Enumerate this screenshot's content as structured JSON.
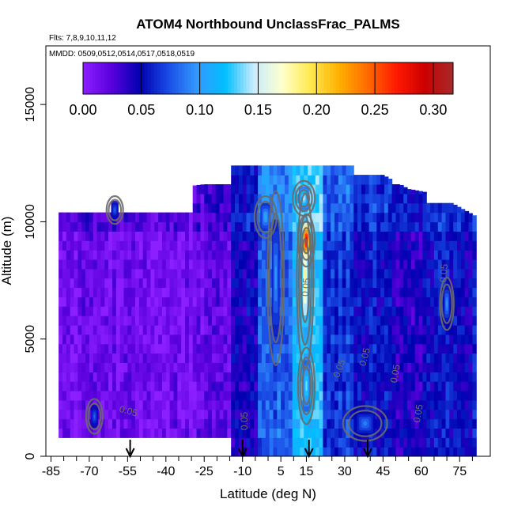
{
  "chart_data": {
    "type": "heatmap",
    "title": "ATOM4 Northbound UnclassFrac_PALMS",
    "subtitle_flights": "Flts: 7,8,9,10,11,12",
    "subtitle_dates": "MMDD: 0509,0512,0514,0517,0518,0519",
    "xlabel": "Latitude (deg N)",
    "ylabel": "Altitude (m)",
    "xlim": [
      -87,
      87
    ],
    "ylim": [
      0,
      17500
    ],
    "x_ticks": [
      -85,
      -70,
      -55,
      -40,
      -25,
      -10,
      5,
      15,
      30,
      45,
      60,
      75
    ],
    "x_minor_ticks": [
      -80,
      -75,
      -65,
      -60,
      -50,
      -45,
      -35,
      -30,
      -20,
      -15,
      -5,
      0,
      10,
      20,
      25,
      35,
      40,
      50,
      55,
      65,
      70,
      80
    ],
    "y_ticks": [
      0,
      5000,
      10000,
      15000
    ],
    "colorbar": {
      "min": 0.0,
      "max": 0.317,
      "ticks": [
        "0.00",
        "0.05",
        "0.10",
        "0.15",
        "0.20",
        "0.25",
        "0.30"
      ],
      "tick_values": [
        0.0,
        0.05,
        0.1,
        0.15,
        0.2,
        0.25,
        0.3
      ],
      "colors": [
        "#8c1fff",
        "#5a00dd",
        "#0000b0",
        "#1a4ce6",
        "#3399ff",
        "#00bfff",
        "#c8ecff",
        "#ffffcc",
        "#ffe94d",
        "#ffb000",
        "#ff6a00",
        "#ff1a00",
        "#cc0000",
        "#a52a2a"
      ]
    },
    "arrows_latitude": [
      -54,
      -10,
      16,
      39
    ],
    "contour_labels": [
      {
        "text": "0.05",
        "lat": -55,
        "alt": 1800,
        "rotate": 15
      },
      {
        "text": "0.05",
        "lat": -8,
        "alt": 1500,
        "rotate": -90
      },
      {
        "text": "0.05",
        "lat": 16,
        "alt": 7200,
        "rotate": -85
      },
      {
        "text": "0.05",
        "lat": 29,
        "alt": 3700,
        "rotate": -70
      },
      {
        "text": "0.05",
        "lat": 39,
        "alt": 4200,
        "rotate": -75
      },
      {
        "text": "0.05",
        "lat": 51,
        "alt": 3500,
        "rotate": -80
      },
      {
        "text": "0.05",
        "lat": 60,
        "alt": 1800,
        "rotate": -80
      },
      {
        "text": "0.05",
        "lat": 70,
        "alt": 7800,
        "rotate": -85
      }
    ],
    "domain": {
      "lat_range": [
        -85,
        85
      ],
      "alt_by_lat": [
        [
          -85,
          10400
        ],
        [
          -70,
          10500
        ],
        [
          -60,
          11400
        ],
        [
          -40,
          11400
        ],
        [
          -25,
          11600
        ],
        [
          -20,
          12400
        ],
        [
          25,
          12400
        ],
        [
          30,
          13000
        ],
        [
          33,
          12400
        ],
        [
          45,
          12000
        ],
        [
          55,
          11400
        ],
        [
          65,
          11200
        ],
        [
          72,
          10800
        ],
        [
          82,
          10200
        ]
      ]
    },
    "cells_note": "",
    "regions": [
      {
        "lat": [
          -82,
          -30
        ],
        "alt": [
          800,
          10300
        ],
        "value": 0.005
      },
      {
        "lat": [
          -30,
          -14
        ],
        "alt": [
          800,
          11500
        ],
        "value": 0.01
      },
      {
        "lat": [
          -14,
          -4
        ],
        "alt": [
          0,
          12200
        ],
        "value": 0.035
      },
      {
        "lat": [
          -4,
          10
        ],
        "alt": [
          0,
          12200
        ],
        "value": 0.07
      },
      {
        "lat": [
          10,
          22
        ],
        "alt": [
          0,
          12200
        ],
        "value": 0.11
      },
      {
        "lat": [
          22,
          34
        ],
        "alt": [
          0,
          12200
        ],
        "value": 0.06
      },
      {
        "lat": [
          34,
          48
        ],
        "alt": [
          0,
          12000
        ],
        "value": 0.045
      },
      {
        "lat": [
          48,
          62
        ],
        "alt": [
          0,
          11400
        ],
        "value": 0.035
      },
      {
        "lat": [
          62,
          82
        ],
        "alt": [
          0,
          10800
        ],
        "value": 0.045
      }
    ],
    "hotspots": [
      {
        "lat": 14.5,
        "alt": 7500,
        "w": 3,
        "h": 5000,
        "value": 0.19
      },
      {
        "lat": 15,
        "alt": 9200,
        "w": 3,
        "h": 1500,
        "value": 0.3
      },
      {
        "lat": 15,
        "alt": 3000,
        "w": 3,
        "h": 2200,
        "value": 0.14
      },
      {
        "lat": 3,
        "alt": 7600,
        "w": 3,
        "h": 5000,
        "value": 0.1
      },
      {
        "lat": 14,
        "alt": 11000,
        "w": 4,
        "h": 1000,
        "value": 0.15
      },
      {
        "lat": -1,
        "alt": 10200,
        "w": 4,
        "h": 1200,
        "value": 0.11
      },
      {
        "lat": 38,
        "alt": 1400,
        "w": 8,
        "h": 1000,
        "value": 0.09
      },
      {
        "lat": 70,
        "alt": 6500,
        "w": 2.5,
        "h": 1500,
        "value": 0.1
      },
      {
        "lat": -68,
        "alt": 1700,
        "w": 3,
        "h": 1000,
        "value": 0.08
      },
      {
        "lat": -60,
        "alt": 10500,
        "w": 3,
        "h": 800,
        "value": 0.08
      }
    ]
  }
}
